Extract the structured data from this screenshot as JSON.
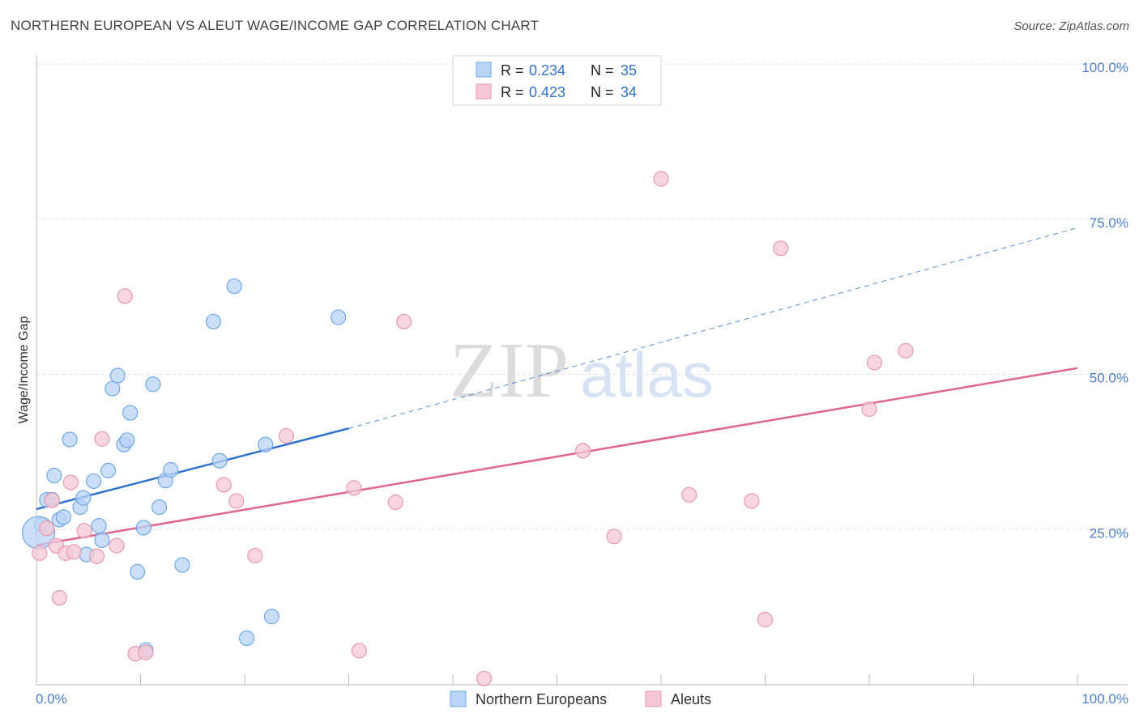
{
  "title": "NORTHERN EUROPEAN VS ALEUT WAGE/INCOME GAP CORRELATION CHART",
  "source": "Source: ZipAtlas.com",
  "watermark": {
    "zip": "ZIP",
    "atlas": "atlas"
  },
  "colors": {
    "blue": "#6fa8e8",
    "blue_line": "#2f72cf",
    "blue_fill": "#b9d3f5",
    "pink": "#e899b1",
    "pink_line": "#e06590",
    "pink_fill": "#f6c8d6",
    "axis_text": "#4a7fd0",
    "grid": "#dddddd"
  },
  "legend": {
    "r_label": "R =",
    "n_label": "N =",
    "entries": [
      {
        "series": "Northern Europeans",
        "r": "0.234",
        "n": "35"
      },
      {
        "series": "Aleuts",
        "r": "0.423",
        "n": "34"
      }
    ]
  },
  "chart_data": {
    "type": "scatter",
    "title": "NORTHERN EUROPEAN VS ALEUT WAGE/INCOME GAP CORRELATION CHART",
    "xlabel": "",
    "ylabel": "Wage/Income Gap",
    "xlim": [
      0,
      100
    ],
    "ylim": [
      0,
      100
    ],
    "x_tick_labels": [
      "0.0%",
      "100.0%"
    ],
    "y_ticks": [
      25,
      50,
      75,
      100
    ],
    "y_tick_labels": [
      "25.0%",
      "50.0%",
      "75.0%",
      "100.0%"
    ],
    "grid": true,
    "legend_position": "bottom",
    "series": [
      {
        "name": "Northern Europeans",
        "r": 0.234,
        "n": 35,
        "trend": {
          "x0": 0,
          "y0": 28.3,
          "x1": 30,
          "y1": 41.3,
          "dashed_to_x": 100,
          "dashed_to_y": 73.6
        },
        "points": [
          [
            0.5,
            25.8
          ],
          [
            1.0,
            29.8
          ],
          [
            1.5,
            29.8
          ],
          [
            1.7,
            33.7
          ],
          [
            2.2,
            26.6
          ],
          [
            2.6,
            27.0
          ],
          [
            3.2,
            39.5
          ],
          [
            4.2,
            28.6
          ],
          [
            4.5,
            30.1
          ],
          [
            4.8,
            21.0
          ],
          [
            5.5,
            32.8
          ],
          [
            6.0,
            25.6
          ],
          [
            6.3,
            23.3
          ],
          [
            6.9,
            34.5
          ],
          [
            7.3,
            47.7
          ],
          [
            7.8,
            49.8
          ],
          [
            8.4,
            38.7
          ],
          [
            8.7,
            39.4
          ],
          [
            9.0,
            43.8
          ],
          [
            9.7,
            18.2
          ],
          [
            10.3,
            25.3
          ],
          [
            10.5,
            5.6
          ],
          [
            11.2,
            48.4
          ],
          [
            11.8,
            28.6
          ],
          [
            12.4,
            32.9
          ],
          [
            12.9,
            34.6
          ],
          [
            14.0,
            19.3
          ],
          [
            17.0,
            58.5
          ],
          [
            17.6,
            36.1
          ],
          [
            19.0,
            64.2
          ],
          [
            20.2,
            7.5
          ],
          [
            22.0,
            38.7
          ],
          [
            22.6,
            11.0
          ],
          [
            29.0,
            59.2
          ],
          [
            0.2,
            24.5
          ]
        ]
      },
      {
        "name": "Aleuts",
        "r": 0.423,
        "n": 34,
        "trend": {
          "x0": 0,
          "y0": 22.5,
          "x1": 100,
          "y1": 51.0
        },
        "points": [
          [
            0.3,
            21.2
          ],
          [
            1.0,
            25.2
          ],
          [
            1.5,
            29.7
          ],
          [
            1.9,
            22.4
          ],
          [
            2.8,
            21.2
          ],
          [
            3.3,
            32.6
          ],
          [
            3.6,
            21.4
          ],
          [
            2.2,
            14.0
          ],
          [
            4.6,
            24.8
          ],
          [
            5.8,
            20.7
          ],
          [
            6.3,
            39.6
          ],
          [
            7.7,
            22.4
          ],
          [
            8.5,
            62.6
          ],
          [
            9.5,
            5.0
          ],
          [
            10.5,
            5.2
          ],
          [
            18.0,
            32.2
          ],
          [
            19.2,
            29.6
          ],
          [
            21.0,
            20.8
          ],
          [
            24.0,
            40.1
          ],
          [
            30.5,
            31.7
          ],
          [
            31.0,
            5.5
          ],
          [
            34.5,
            29.4
          ],
          [
            35.3,
            58.5
          ],
          [
            43.0,
            1.0
          ],
          [
            52.5,
            37.7
          ],
          [
            55.5,
            23.9
          ],
          [
            60.0,
            81.5
          ],
          [
            62.7,
            30.6
          ],
          [
            68.7,
            29.6
          ],
          [
            70.0,
            10.5
          ],
          [
            71.5,
            70.3
          ],
          [
            80.0,
            44.4
          ],
          [
            80.5,
            51.9
          ],
          [
            83.5,
            53.8
          ]
        ]
      }
    ]
  }
}
